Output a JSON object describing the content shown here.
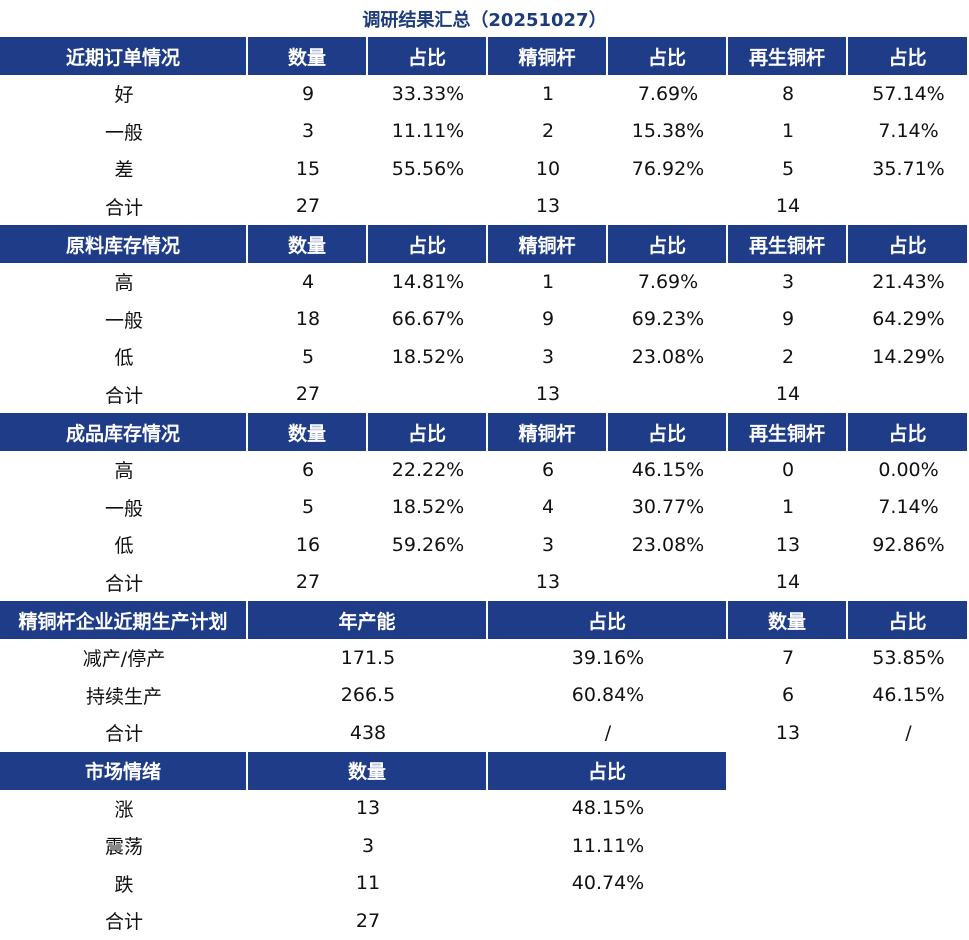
{
  "title": "调研结果汇总（20251027）",
  "sections": [
    {
      "header": [
        "近期订单情况",
        "数量",
        "占比",
        "精铜杆",
        "占比",
        "再生铜杆",
        "占比"
      ],
      "rows": [
        [
          "好",
          "9",
          "33.33%",
          "1",
          "7.69%",
          "8",
          "57.14%"
        ],
        [
          "一般",
          "3",
          "11.11%",
          "2",
          "15.38%",
          "1",
          "7.14%"
        ],
        [
          "差",
          "15",
          "55.56%",
          "10",
          "76.92%",
          "5",
          "35.71%"
        ],
        [
          "合计",
          "27",
          null,
          "13",
          null,
          "14",
          null
        ]
      ]
    },
    {
      "header": [
        "原料库存情况",
        "数量",
        "占比",
        "精铜杆",
        "占比",
        "再生铜杆",
        "占比"
      ],
      "rows": [
        [
          "高",
          "4",
          "14.81%",
          "1",
          "7.69%",
          "3",
          "21.43%"
        ],
        [
          "一般",
          "18",
          "66.67%",
          "9",
          "69.23%",
          "9",
          "64.29%"
        ],
        [
          "低",
          "5",
          "18.52%",
          "3",
          "23.08%",
          "2",
          "14.29%"
        ],
        [
          "合计",
          "27",
          null,
          "13",
          null,
          "14",
          null
        ]
      ]
    },
    {
      "header": [
        "成品库存情况",
        "数量",
        "占比",
        "精铜杆",
        "占比",
        "再生铜杆",
        "占比"
      ],
      "rows": [
        [
          "高",
          "6",
          "22.22%",
          "6",
          "46.15%",
          "0",
          "0.00%"
        ],
        [
          "一般",
          "5",
          "18.52%",
          "4",
          "30.77%",
          "1",
          "7.14%"
        ],
        [
          "低",
          "16",
          "59.26%",
          "3",
          "23.08%",
          "13",
          "92.86%"
        ],
        [
          "合计",
          "27",
          null,
          "13",
          null,
          "14",
          null
        ]
      ]
    },
    {
      "header": [
        "精铜杆企业近期生产计划",
        "年产能",
        "占比",
        "数量",
        "占比"
      ],
      "rows": [
        [
          "减产/停产",
          "171.5",
          "39.16%",
          "7",
          "53.85%"
        ],
        [
          "持续生产",
          "266.5",
          "60.84%",
          "6",
          "46.15%"
        ],
        [
          "合计",
          "438",
          "/",
          "13",
          "/"
        ]
      ]
    },
    {
      "header": [
        "市场情绪",
        "数量",
        "占比"
      ],
      "rows": [
        [
          "涨",
          "13",
          "48.15%"
        ],
        [
          "震荡",
          "3",
          "11.11%"
        ],
        [
          "跌",
          "11",
          "40.74%"
        ],
        [
          "合计",
          "27",
          null
        ]
      ]
    }
  ]
}
